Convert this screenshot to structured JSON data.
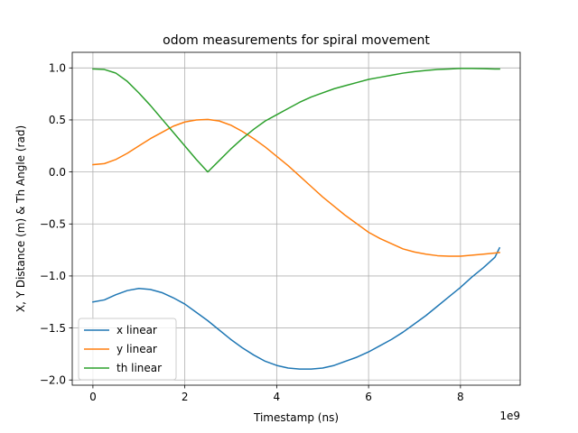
{
  "chart_data": {
    "type": "line",
    "title": "odom measurements for spiral movement",
    "xlabel": "Timestamp (ns)",
    "ylabel": "X, Y Distance (m) & Th Angle (rad)",
    "x_offset_label": "1e9",
    "xlim": [
      -0.45,
      9.3
    ],
    "ylim": [
      -2.05,
      1.15
    ],
    "x_ticks": [
      0,
      2,
      4,
      6,
      8
    ],
    "x_tick_labels": [
      "0",
      "2",
      "4",
      "6",
      "8"
    ],
    "y_ticks": [
      -2.0,
      -1.5,
      -1.0,
      -0.5,
      0.0,
      0.5,
      1.0
    ],
    "y_tick_labels": [
      "−2.0",
      "−1.5",
      "−1.0",
      "−0.5",
      "0.0",
      "0.5",
      "1.0"
    ],
    "grid": true,
    "legend_position": "lower-left",
    "series": [
      {
        "name": "x linear",
        "color": "#1f77b4",
        "x": [
          0,
          0.25,
          0.5,
          0.75,
          1.0,
          1.25,
          1.5,
          1.75,
          2.0,
          2.25,
          2.5,
          2.75,
          3.0,
          3.25,
          3.5,
          3.75,
          4.0,
          4.25,
          4.5,
          4.75,
          5.0,
          5.25,
          5.5,
          5.75,
          6.0,
          6.25,
          6.5,
          6.75,
          7.0,
          7.25,
          7.5,
          7.75,
          8.0,
          8.25,
          8.5,
          8.75,
          8.85
        ],
        "y": [
          -1.25,
          -1.23,
          -1.18,
          -1.14,
          -1.12,
          -1.13,
          -1.16,
          -1.21,
          -1.27,
          -1.35,
          -1.43,
          -1.52,
          -1.61,
          -1.69,
          -1.76,
          -1.82,
          -1.86,
          -1.885,
          -1.895,
          -1.895,
          -1.885,
          -1.86,
          -1.82,
          -1.78,
          -1.73,
          -1.67,
          -1.61,
          -1.54,
          -1.46,
          -1.38,
          -1.29,
          -1.2,
          -1.11,
          -1.01,
          -0.92,
          -0.82,
          -0.73
        ]
      },
      {
        "name": "y linear",
        "color": "#ff7f0e",
        "x": [
          0,
          0.25,
          0.5,
          0.75,
          1.0,
          1.25,
          1.5,
          1.75,
          2.0,
          2.25,
          2.5,
          2.75,
          3.0,
          3.25,
          3.5,
          3.75,
          4.0,
          4.25,
          4.5,
          4.75,
          5.0,
          5.25,
          5.5,
          5.75,
          6.0,
          6.25,
          6.5,
          6.75,
          7.0,
          7.25,
          7.5,
          7.75,
          8.0,
          8.25,
          8.5,
          8.75,
          8.85
        ],
        "y": [
          0.07,
          0.08,
          0.12,
          0.18,
          0.25,
          0.32,
          0.38,
          0.44,
          0.48,
          0.5,
          0.505,
          0.49,
          0.45,
          0.39,
          0.32,
          0.24,
          0.15,
          0.06,
          -0.04,
          -0.14,
          -0.24,
          -0.33,
          -0.42,
          -0.5,
          -0.58,
          -0.64,
          -0.69,
          -0.74,
          -0.77,
          -0.79,
          -0.805,
          -0.81,
          -0.81,
          -0.8,
          -0.79,
          -0.78,
          -0.775
        ]
      },
      {
        "name": "th linear",
        "color": "#2ca02c",
        "x": [
          0,
          0.25,
          0.5,
          0.75,
          1.0,
          1.25,
          1.5,
          1.75,
          2.0,
          2.25,
          2.5,
          2.75,
          3.0,
          3.25,
          3.5,
          3.75,
          4.0,
          4.25,
          4.5,
          4.75,
          5.0,
          5.25,
          5.5,
          5.75,
          6.0,
          6.25,
          6.5,
          6.75,
          7.0,
          7.25,
          7.5,
          7.75,
          8.0,
          8.25,
          8.5,
          8.75,
          8.85
        ],
        "y": [
          0.99,
          0.985,
          0.95,
          0.87,
          0.76,
          0.64,
          0.51,
          0.38,
          0.25,
          0.12,
          0.0,
          0.11,
          0.22,
          0.32,
          0.41,
          0.49,
          0.55,
          0.61,
          0.67,
          0.72,
          0.76,
          0.8,
          0.83,
          0.86,
          0.89,
          0.91,
          0.93,
          0.95,
          0.965,
          0.975,
          0.985,
          0.99,
          0.995,
          0.995,
          0.993,
          0.99,
          0.99
        ]
      }
    ]
  }
}
